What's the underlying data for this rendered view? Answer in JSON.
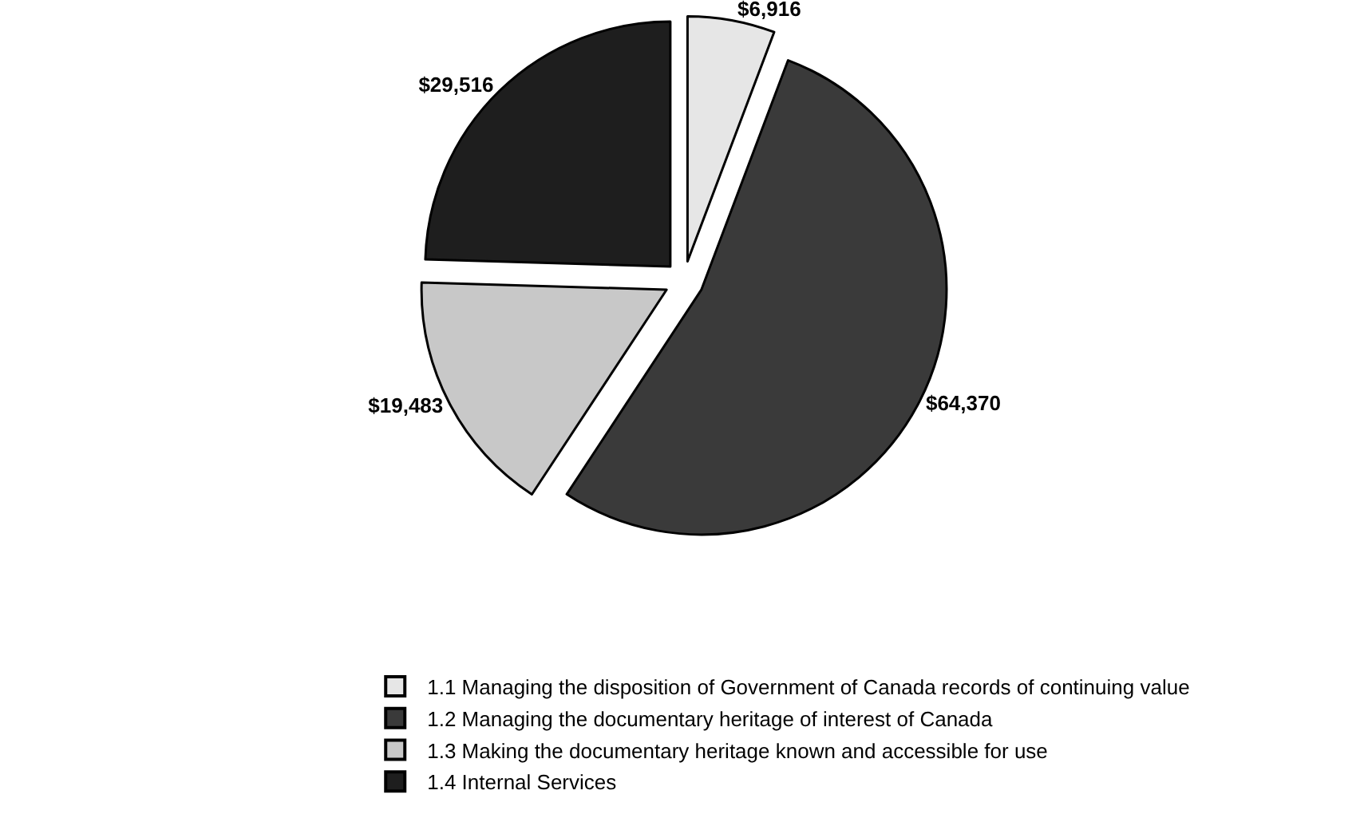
{
  "chart_data": {
    "type": "pie",
    "categories": [
      "1.1 Managing the disposition of Government of Canada records of continuing value",
      "1.2 Managing the documentary heritage of interest of Canada",
      "1.3 Making the documentary heritage known and accessible for use",
      "1.4 Internal Services"
    ],
    "values": [
      6916,
      64370,
      19483,
      29516
    ],
    "value_labels": [
      "$6,916",
      "$64,370",
      "$19,483",
      "$29,516"
    ],
    "colors": [
      "#e6e6e6",
      "#3a3a3a",
      "#c8c8c8",
      "#1e1e1e"
    ],
    "legend": "bottom"
  }
}
